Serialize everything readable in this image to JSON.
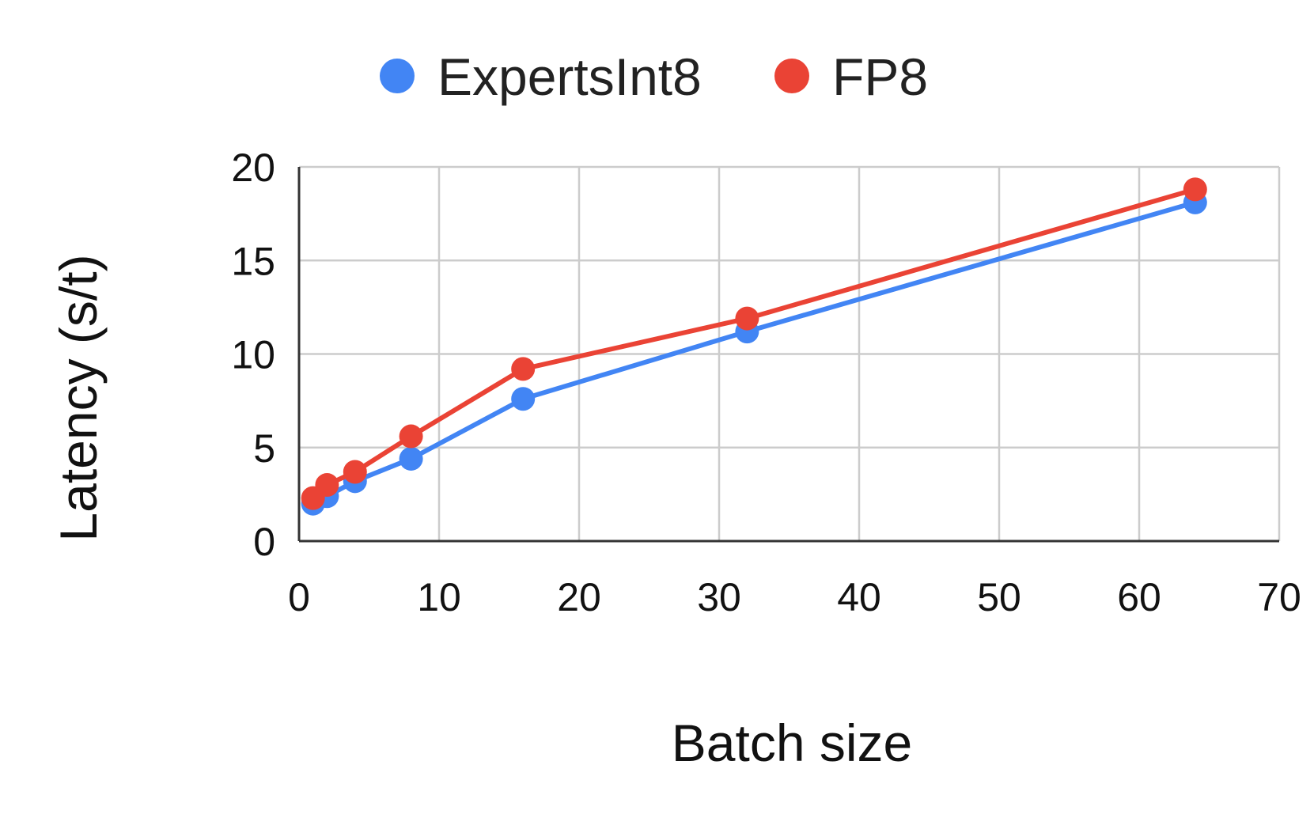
{
  "chart_data": {
    "type": "line",
    "xlabel": "Batch size",
    "ylabel": "Latency (s/t)",
    "xlim": [
      0,
      70
    ],
    "ylim": [
      0,
      20
    ],
    "xticks": [
      "0",
      "10",
      "20",
      "30",
      "40",
      "50",
      "60",
      "70"
    ],
    "yticks": [
      "0",
      "5",
      "10",
      "15",
      "20"
    ],
    "grid": true,
    "legend_position": "top",
    "x": [
      1,
      2,
      4,
      8,
      16,
      32,
      64
    ],
    "series": [
      {
        "name": "ExpertsInt8",
        "color": "#4285F4",
        "values": [
          2.0,
          2.4,
          3.2,
          4.4,
          7.6,
          11.2,
          18.1
        ]
      },
      {
        "name": "FP8",
        "color": "#EA4335",
        "values": [
          2.3,
          3.0,
          3.7,
          5.6,
          9.2,
          11.9,
          18.8
        ]
      }
    ]
  }
}
